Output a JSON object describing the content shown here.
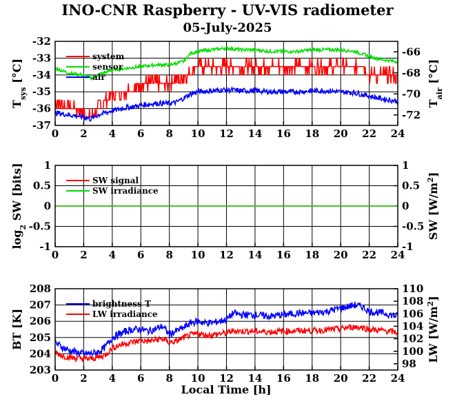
{
  "title": "INO-CNR Raspberry - UV-VIS radiometer",
  "date": "05-July-2025",
  "xlabel": "Local Time [h]",
  "chart_data": [
    {
      "type": "line",
      "xlim": [
        0,
        24
      ],
      "xticks": [
        "0",
        "2",
        "4",
        "6",
        "8",
        "10",
        "12",
        "14",
        "16",
        "18",
        "20",
        "22",
        "24"
      ],
      "ylabel": {
        "main": "T",
        "sub": "sys",
        "unit": " [°C]"
      },
      "ylim": [
        -37,
        -32
      ],
      "yticks": [
        "-37",
        "-36",
        "-35",
        "-34",
        "-33",
        "-32"
      ],
      "y2label": {
        "main": "T",
        "sub": "air",
        "unit": " [°C]"
      },
      "y2lim": [
        -73,
        -65
      ],
      "y2ticks": [
        "-72",
        "-70",
        "-68",
        "-66"
      ],
      "grid": true,
      "legend": "top-left",
      "series": [
        {
          "name": "system",
          "color": "#ff0000",
          "axis": "left",
          "x": [
            0,
            0.5,
            1,
            1.5,
            2,
            2.5,
            3,
            3.5,
            4,
            4.5,
            5,
            5.5,
            6,
            6.5,
            7,
            7.5,
            8,
            8.5,
            9,
            9.5,
            10,
            11,
            12,
            13,
            14,
            15,
            16,
            17,
            18,
            19,
            20,
            21,
            21.5,
            22,
            23,
            24
          ],
          "y": [
            -35.5,
            -35.8,
            -35.8,
            -36,
            -36.2,
            -36.6,
            -36,
            -35.5,
            -35.2,
            -35,
            -35,
            -34.8,
            -34.5,
            -34.5,
            -34.4,
            -34.6,
            -34.5,
            -34.3,
            -34.2,
            -33.7,
            -33.5,
            -33.5,
            -33.5,
            -33.5,
            -33.5,
            -33.5,
            -33.5,
            -33.5,
            -33.5,
            -33.5,
            -33.5,
            -33.5,
            -33.5,
            -34,
            -34,
            -34
          ]
        },
        {
          "name": "sensor",
          "color": "#00dd00",
          "axis": "left",
          "x": [
            0,
            1,
            2,
            2.5,
            3,
            4,
            5,
            6,
            7,
            8,
            8.5,
            9,
            9.5,
            10,
            11,
            12,
            13,
            14,
            15,
            16,
            17,
            18,
            19,
            20,
            21,
            22,
            23,
            24
          ],
          "y": [
            -33.6,
            -33.9,
            -34,
            -34.2,
            -34,
            -33.7,
            -33.6,
            -33.5,
            -33.4,
            -33.4,
            -33.3,
            -33.2,
            -32.7,
            -32.6,
            -32.5,
            -32.4,
            -32.5,
            -32.5,
            -32.6,
            -32.6,
            -32.6,
            -32.5,
            -32.5,
            -32.5,
            -32.6,
            -32.9,
            -33.1,
            -33.2
          ]
        },
        {
          "name": "air",
          "color": "#0000ff",
          "axis": "right",
          "x": [
            0,
            1,
            2,
            2.5,
            3,
            4,
            5,
            6,
            7,
            8,
            8.5,
            9,
            9.5,
            10,
            11,
            12,
            13,
            14,
            15,
            16,
            17,
            18,
            19,
            20,
            21,
            22,
            23,
            24
          ],
          "y": [
            -71.8,
            -72,
            -72.2,
            -72.4,
            -72,
            -71.6,
            -71.3,
            -71.1,
            -70.9,
            -70.9,
            -70.8,
            -70.4,
            -70,
            -69.8,
            -69.7,
            -69.6,
            -69.7,
            -69.7,
            -69.8,
            -69.8,
            -69.8,
            -69.7,
            -69.7,
            -69.8,
            -69.9,
            -70.2,
            -70.5,
            -70.7
          ]
        }
      ]
    },
    {
      "type": "line",
      "xlim": [
        0,
        24
      ],
      "xticks": [
        "0",
        "2",
        "4",
        "6",
        "8",
        "10",
        "12",
        "14",
        "16",
        "18",
        "20",
        "22",
        "24"
      ],
      "ylabel": {
        "main": "log",
        "sub": "2",
        "unit": " SW [bits]"
      },
      "ylim": [
        -1,
        1
      ],
      "yticks": [
        "-1",
        "-0.5",
        "0",
        "0.5",
        "1"
      ],
      "y2label": {
        "main": "SW [W/m",
        "sup": "2",
        "unit": "]"
      },
      "y2lim": [
        -1,
        1
      ],
      "y2ticks": [
        "-1",
        "-0.5",
        "0",
        "0.5",
        "1"
      ],
      "grid": true,
      "legend": "top-left",
      "series": [
        {
          "name": "SW signal",
          "color": "#ff0000",
          "axis": "left",
          "x": [
            0,
            24
          ],
          "y": [
            0,
            0
          ]
        },
        {
          "name": "SW irradiance",
          "color": "#00dd00",
          "axis": "left",
          "x": [
            0,
            24
          ],
          "y": [
            0,
            0
          ]
        }
      ]
    },
    {
      "type": "line",
      "xlim": [
        0,
        24
      ],
      "xticks": [
        "0",
        "2",
        "4",
        "6",
        "8",
        "10",
        "12",
        "14",
        "16",
        "18",
        "20",
        "22",
        "24"
      ],
      "ylabel": {
        "main": "BT [K]"
      },
      "ylim": [
        203,
        208
      ],
      "yticks": [
        "203",
        "204",
        "205",
        "206",
        "207",
        "208"
      ],
      "y2label": {
        "main": "LW [W/m",
        "sup": "2",
        "unit": "]"
      },
      "y2lim": [
        97,
        110
      ],
      "y2ticks": [
        "98",
        "100",
        "102",
        "104",
        "106",
        "108",
        "110"
      ],
      "grid": true,
      "legend": "top-left",
      "series": [
        {
          "name": "brightness T",
          "color": "#0000ff",
          "axis": "left",
          "x": [
            0,
            0.5,
            1,
            1.5,
            2,
            2.5,
            3,
            3.5,
            4,
            4.5,
            5,
            5.5,
            6,
            6.5,
            7,
            7.5,
            8,
            8.5,
            9,
            9.5,
            10,
            10.5,
            11,
            11.5,
            12,
            12.5,
            13,
            14,
            15,
            16,
            17,
            18,
            19,
            20,
            20.5,
            21,
            21.5,
            22,
            23,
            24
          ],
          "y": [
            204.7,
            204.4,
            204.2,
            204.1,
            204,
            204,
            204.1,
            204.4,
            205,
            205.2,
            205.4,
            205.5,
            205.5,
            205.4,
            205.5,
            205.7,
            205.2,
            205.4,
            205.6,
            205.9,
            206,
            205.9,
            205.9,
            206,
            206.1,
            206.5,
            206.4,
            206.4,
            206.3,
            206.4,
            206.5,
            206.5,
            206.6,
            206.8,
            206.9,
            207,
            206.9,
            206.6,
            206.5,
            206.3
          ]
        },
        {
          "name": "LW irradiance",
          "color": "#ff0000",
          "axis": "right",
          "x": [
            0,
            0.5,
            1,
            1.5,
            2,
            2.5,
            3,
            3.5,
            4,
            4.5,
            5,
            5.5,
            6,
            6.5,
            7,
            7.5,
            8,
            8.5,
            9,
            9.5,
            10,
            10.5,
            11,
            11.5,
            12,
            12.5,
            13,
            14,
            15,
            16,
            17,
            18,
            19,
            20,
            20.5,
            21,
            21.5,
            22,
            23,
            24
          ],
          "y": [
            99.8,
            99.3,
            99,
            98.9,
            98.8,
            98.8,
            99,
            99.4,
            100.5,
            101,
            101.3,
            101.5,
            101.7,
            101.6,
            101.8,
            102,
            101.4,
            101.6,
            102.2,
            102.6,
            102.8,
            102.6,
            102.6,
            102.8,
            102.9,
            103.3,
            103.2,
            103.2,
            103.1,
            103.2,
            103.3,
            103.3,
            103.4,
            103.6,
            103.8,
            103.9,
            103.8,
            103.5,
            103.3,
            103
          ]
        }
      ]
    }
  ]
}
